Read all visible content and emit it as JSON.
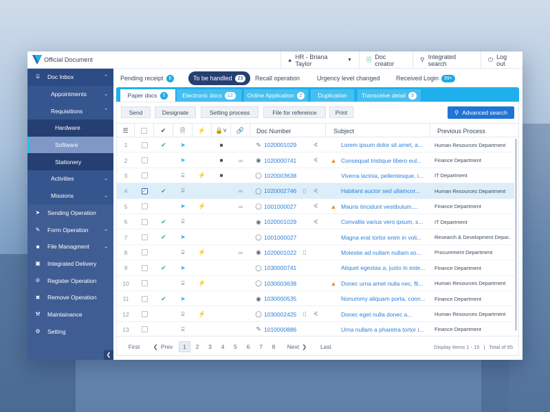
{
  "header": {
    "logo_text": "Official Document",
    "user": "HR - Briana Taylor",
    "doc_creator": "Doc creator",
    "integrated_search": "Integrated search",
    "logout": "Log out"
  },
  "sidebar": {
    "items": [
      {
        "label": "Doc Inbox",
        "icon": "inbox-icon",
        "level": "top",
        "chevron": "up"
      },
      {
        "label": "Appointments",
        "level": "sub",
        "chevron": "down"
      },
      {
        "label": "Requisitions",
        "level": "sub",
        "chevron": "up"
      },
      {
        "label": "Hardware",
        "level": "subsub"
      },
      {
        "label": "Software",
        "level": "subsub",
        "active": true
      },
      {
        "label": "Stationery",
        "level": "subsub"
      },
      {
        "label": "Activities",
        "level": "sub",
        "chevron": "down"
      },
      {
        "label": "Missions",
        "level": "sub",
        "chevron": "down"
      },
      {
        "label": "Sending Operation",
        "icon": "send-icon",
        "level": "main"
      },
      {
        "label": "Form Operation",
        "icon": "edit-icon",
        "level": "main",
        "chevron": "down"
      },
      {
        "label": "File Managment",
        "icon": "folder-icon",
        "level": "main",
        "chevron": "down"
      },
      {
        "label": "Integrated Delivery",
        "icon": "delivery-icon",
        "level": "main"
      },
      {
        "label": "Register Operation",
        "icon": "register-icon",
        "level": "main"
      },
      {
        "label": "Remove Operation",
        "icon": "trash-icon",
        "level": "main"
      },
      {
        "label": "Maintainance",
        "icon": "wrench-icon",
        "level": "main"
      },
      {
        "label": "Setting",
        "icon": "gear-icon",
        "level": "main"
      }
    ]
  },
  "status_tabs": [
    {
      "label": "Pending receipt",
      "badge": "6"
    },
    {
      "label": "To be handled",
      "badge": "23",
      "active": true
    },
    {
      "label": "Recall operation",
      "badge": ""
    },
    {
      "label": "Urgency level changed",
      "badge": ""
    },
    {
      "label": "Received Login",
      "badge": "99+"
    }
  ],
  "doc_tabs": [
    {
      "label": "Paper docs",
      "badge": "5",
      "active": true
    },
    {
      "label": "Electronic docs",
      "badge": "12"
    },
    {
      "label": "Online Application",
      "badge": "2"
    },
    {
      "label": "Duplication",
      "badge": ""
    },
    {
      "label": "Transceive detail",
      "badge": "3"
    }
  ],
  "toolbar": {
    "buttons": [
      "Send",
      "Designate",
      "Setting process",
      "File for reference",
      "Print"
    ],
    "advanced_search": "Advanced search"
  },
  "table": {
    "headers": {
      "doc_number": "Doc Number",
      "subject": "Subject",
      "previous": "Previous Process"
    },
    "rows": [
      {
        "n": "1",
        "checked": false,
        "done": true,
        "type": "send",
        "urgent": false,
        "lock": true,
        "link": false,
        "doc_icon": "edit",
        "doc": "1020001029",
        "file": false,
        "clip": true,
        "warn": false,
        "subject": "Lorem ipsum dolor sit amet, a...",
        "prev": "Human Resources Department"
      },
      {
        "n": "2",
        "checked": false,
        "done": false,
        "type": "send",
        "urgent": false,
        "lock": true,
        "link": true,
        "doc_icon": "eye",
        "doc": "1020000741",
        "file": false,
        "clip": true,
        "warn": true,
        "subject": "Consequat tristique libero eul...",
        "prev": "Finance Department"
      },
      {
        "n": "3",
        "checked": false,
        "done": false,
        "type": "inbox",
        "urgent": true,
        "lock": true,
        "link": false,
        "doc_icon": "chat",
        "doc": "1020003638",
        "file": false,
        "clip": false,
        "warn": false,
        "subject": "Viverra lacinia, pellentesque, i...",
        "prev": "IT Department"
      },
      {
        "n": "4",
        "checked": true,
        "done": true,
        "type": "inbox",
        "urgent": false,
        "lock": false,
        "link": true,
        "doc_icon": "chat",
        "doc": "1020002746",
        "file": true,
        "clip": true,
        "warn": false,
        "subject": "Habitant auctor sed ullamcor...",
        "prev": "Human Resources Department",
        "sel": true
      },
      {
        "n": "5",
        "checked": false,
        "done": false,
        "type": "send",
        "urgent": true,
        "lock": false,
        "link": true,
        "doc_icon": "chat",
        "doc": "1001000027",
        "file": false,
        "clip": true,
        "warn": true,
        "subject": "Mauris tincidunt vestibulum....",
        "prev": "Finance Department"
      },
      {
        "n": "6",
        "checked": false,
        "done": true,
        "type": "inbox",
        "urgent": false,
        "lock": false,
        "link": false,
        "doc_icon": "eye",
        "doc": "1020001029",
        "file": false,
        "clip": true,
        "warn": false,
        "subject": "Convallis varius vero ipsum, s...",
        "prev": "IT Department"
      },
      {
        "n": "7",
        "checked": false,
        "done": true,
        "type": "send",
        "urgent": false,
        "lock": false,
        "link": false,
        "doc_icon": "chat",
        "doc": "1001000027",
        "file": false,
        "clip": false,
        "warn": false,
        "subject": "Magna erat tortor enim in voli...",
        "prev": "Research & Development Depar..."
      },
      {
        "n": "8",
        "checked": false,
        "done": false,
        "type": "inbox",
        "urgent": true,
        "lock": false,
        "link": true,
        "doc_icon": "eye",
        "doc": "1020001022",
        "file": true,
        "clip": false,
        "warn": false,
        "subject": "Molestie ad nullam nullam so...",
        "prev": "Procurement Department"
      },
      {
        "n": "9",
        "checked": false,
        "done": true,
        "type": "send",
        "urgent": false,
        "lock": false,
        "link": false,
        "doc_icon": "chat",
        "doc": "1030000741",
        "file": false,
        "clip": false,
        "warn": false,
        "subject": "Aliquet egestas a, justo in este...",
        "prev": "Finance Department"
      },
      {
        "n": "10",
        "checked": false,
        "done": false,
        "type": "inbox",
        "urgent": true,
        "lock": false,
        "link": false,
        "doc_icon": "chat",
        "doc": "1030003638",
        "file": false,
        "clip": false,
        "warn": true,
        "subject": "Donec urna amet nulla nec, fli...",
        "prev": "Human Resources Department"
      },
      {
        "n": "11",
        "checked": false,
        "done": true,
        "type": "send",
        "urgent": false,
        "lock": false,
        "link": false,
        "doc_icon": "eye",
        "doc": "1030000535",
        "file": false,
        "clip": false,
        "warn": false,
        "subject": "Nonummy aliquam porta, conn...",
        "prev": "Finance Department"
      },
      {
        "n": "12",
        "checked": false,
        "done": false,
        "type": "inbox",
        "urgent": true,
        "lock": false,
        "link": false,
        "doc_icon": "chat",
        "doc": "1030002425",
        "file": true,
        "clip": true,
        "warn": false,
        "subject": "Donec eget nulla donec a...",
        "prev": "Human Resources Department"
      },
      {
        "n": "13",
        "checked": false,
        "done": false,
        "type": "inbox",
        "urgent": false,
        "lock": false,
        "link": false,
        "doc_icon": "edit",
        "doc": "1010000886",
        "file": false,
        "clip": false,
        "warn": false,
        "subject": "Urna nullam a pharetra tortor i...",
        "prev": "Finance Department"
      }
    ]
  },
  "pager": {
    "first": "First",
    "prev": "Prev",
    "pages": [
      "1",
      "2",
      "3",
      "4",
      "5",
      "6",
      "7",
      "8"
    ],
    "current": "1",
    "next": "Next",
    "last": "Last",
    "display": "Display Items 1 - 15",
    "sep": "|",
    "total": "Total of 95"
  },
  "colors": {
    "accent": "#1fb0ec",
    "sidebar": "#3f5d93",
    "primary": "#1f74d6",
    "dark_tab": "#263f73"
  }
}
